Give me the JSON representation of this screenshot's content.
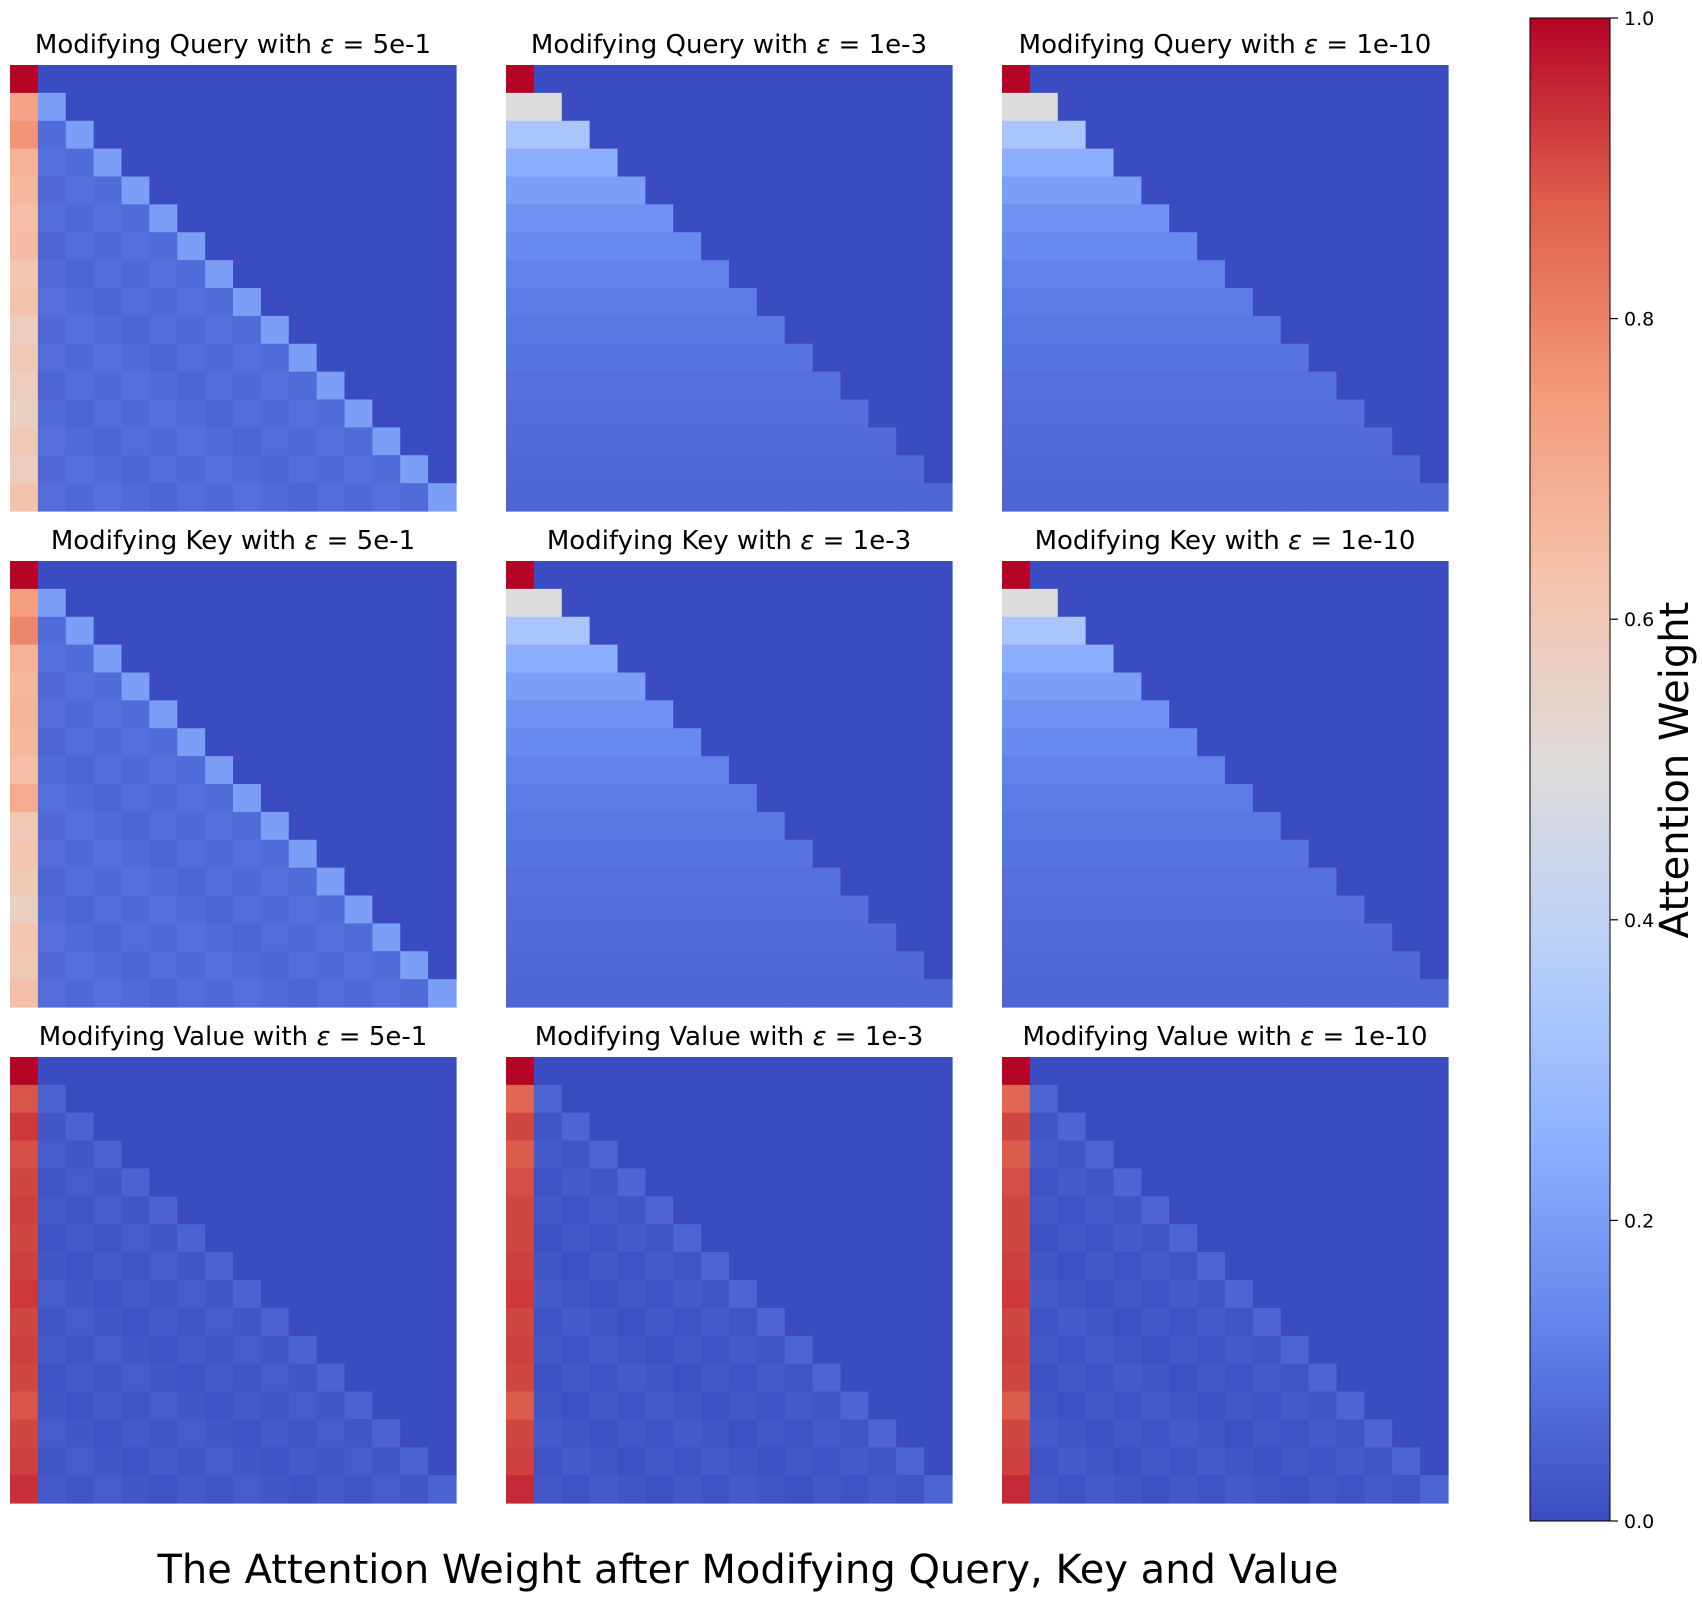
{
  "figure": {
    "suptitle": "The Attention Weight after Modifying Query, Key and Value"
  },
  "colorbar": {
    "label": "Attention Weight",
    "colormap": "coolwarm",
    "range": [
      0.0,
      1.0
    ],
    "ticks": [
      "0.0",
      "0.2",
      "0.4",
      "0.6",
      "0.8",
      "1.0"
    ],
    "colormap_stops": [
      "#3b4cc0",
      "#6282ea",
      "#8db0fe",
      "#b8d0f9",
      "#dddcdc",
      "#f5c4ad",
      "#f49a7b",
      "#de604d",
      "#b40426"
    ]
  },
  "chart_data": [
    {
      "type": "heatmap",
      "title_prefix": "Modifying Query with ",
      "eps_symbol": "ε",
      "title_suffix": " = 5e-1",
      "size": 16,
      "pattern": "qk_high",
      "first_col": [
        1.0,
        0.72,
        0.76,
        0.68,
        0.66,
        0.64,
        0.65,
        0.62,
        0.63,
        0.58,
        0.6,
        0.58,
        0.57,
        0.6,
        0.58,
        0.63
      ],
      "cell_default": 0.06,
      "diag_boost": 0.14
    },
    {
      "type": "heatmap",
      "title_prefix": "Modifying Query with ",
      "eps_symbol": "ε",
      "title_suffix": " = 1e-3",
      "size": 16,
      "pattern": "uniform_causal"
    },
    {
      "type": "heatmap",
      "title_prefix": "Modifying Query with ",
      "eps_symbol": "ε",
      "title_suffix": " = 1e-10",
      "size": 16,
      "pattern": "uniform_causal"
    },
    {
      "type": "heatmap",
      "title_prefix": "Modifying Key with ",
      "eps_symbol": "ε",
      "title_suffix": " = 5e-1",
      "size": 16,
      "pattern": "qk_high",
      "first_col": [
        1.0,
        0.74,
        0.79,
        0.68,
        0.66,
        0.67,
        0.66,
        0.64,
        0.7,
        0.6,
        0.62,
        0.6,
        0.57,
        0.62,
        0.6,
        0.64
      ],
      "cell_default": 0.06,
      "diag_boost": 0.14
    },
    {
      "type": "heatmap",
      "title_prefix": "Modifying Key with ",
      "eps_symbol": "ε",
      "title_suffix": " = 1e-3",
      "size": 16,
      "pattern": "uniform_causal"
    },
    {
      "type": "heatmap",
      "title_prefix": "Modifying Key with ",
      "eps_symbol": "ε",
      "title_suffix": " = 1e-10",
      "size": 16,
      "pattern": "uniform_causal"
    },
    {
      "type": "heatmap",
      "title_prefix": "Modifying Value with ",
      "eps_symbol": "ε",
      "title_suffix": " = 5e-1",
      "size": 16,
      "pattern": "v_high",
      "first_col": [
        1.0,
        0.89,
        0.93,
        0.9,
        0.91,
        0.92,
        0.91,
        0.92,
        0.93,
        0.91,
        0.92,
        0.91,
        0.89,
        0.91,
        0.92,
        0.94
      ],
      "cell_default": 0.012,
      "diag_boost": 0.04
    },
    {
      "type": "heatmap",
      "title_prefix": "Modifying Value with ",
      "eps_symbol": "ε",
      "title_suffix": " = 1e-3",
      "size": 16,
      "pattern": "v_high",
      "first_col": [
        1.0,
        0.86,
        0.91,
        0.88,
        0.9,
        0.91,
        0.91,
        0.92,
        0.93,
        0.91,
        0.92,
        0.91,
        0.88,
        0.91,
        0.92,
        0.95
      ],
      "cell_default": 0.008,
      "diag_boost": 0.05
    },
    {
      "type": "heatmap",
      "title_prefix": "Modifying Value with ",
      "eps_symbol": "ε",
      "title_suffix": " = 1e-10",
      "size": 16,
      "pattern": "v_high",
      "first_col": [
        1.0,
        0.86,
        0.91,
        0.88,
        0.9,
        0.91,
        0.91,
        0.92,
        0.93,
        0.91,
        0.92,
        0.91,
        0.88,
        0.91,
        0.92,
        0.95
      ],
      "cell_default": 0.008,
      "diag_boost": 0.05
    }
  ]
}
